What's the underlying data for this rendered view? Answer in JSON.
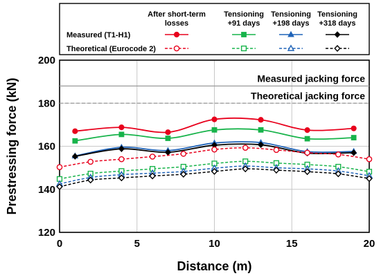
{
  "chart_data": {
    "type": "line",
    "xlabel": "Distance (m)",
    "ylabel": "Prestressing force (kN)",
    "xlim": [
      0,
      20
    ],
    "ylim": [
      120,
      200
    ],
    "xticks": [
      0,
      5,
      10,
      15,
      20
    ],
    "yticks": [
      120,
      140,
      160,
      180,
      200
    ],
    "grid": true,
    "legend_placement": "top",
    "legend": {
      "col_headers": [
        [
          "After short-term",
          "losses"
        ],
        [
          "Tensioning",
          "+91 days"
        ],
        [
          "Tensioning",
          "+198 days"
        ],
        [
          "Tensioning",
          "+318 days"
        ]
      ],
      "row_labels": [
        "Measured (T1-H1)",
        "Theoretical (Eurocode 2)"
      ]
    },
    "annotations": [
      {
        "text": "Measured jacking force",
        "y": 188,
        "color": "#999999",
        "dash": "solid"
      },
      {
        "text": "Theoretical jacking force",
        "y": 180,
        "color": "#999999",
        "dash": "dashed"
      }
    ],
    "series": [
      {
        "group": "measured",
        "stage": "After short-term losses",
        "color": "#e8001c",
        "marker": "circle-filled",
        "dash": "solid",
        "x": [
          1,
          4,
          7,
          10,
          13,
          16,
          19
        ],
        "y": [
          167,
          168.8,
          166.5,
          172.5,
          172.3,
          167.5,
          168.3
        ]
      },
      {
        "group": "measured",
        "stage": "Tensioning +91 days",
        "color": "#17b34a",
        "marker": "square-filled",
        "dash": "solid",
        "x": [
          1,
          4,
          7,
          10,
          13,
          16,
          19
        ],
        "y": [
          162.5,
          165.5,
          163.7,
          167.6,
          167.6,
          163.5,
          164
        ]
      },
      {
        "group": "measured",
        "stage": "Tensioning +198 days",
        "color": "#1f63b8",
        "marker": "triangle-filled",
        "dash": "solid",
        "x": [
          1,
          4,
          7,
          10,
          13,
          16,
          19
        ],
        "y": [
          155.5,
          159.5,
          158,
          161.5,
          161.7,
          157.5,
          157.6
        ]
      },
      {
        "group": "measured",
        "stage": "Tensioning +318 days",
        "color": "#000000",
        "marker": "diamond-filled",
        "dash": "solid",
        "x": [
          1,
          4,
          7,
          10,
          13,
          16,
          19
        ],
        "y": [
          155.3,
          158.8,
          157.2,
          160.5,
          160.7,
          156.8,
          157
        ]
      },
      {
        "group": "theoretical",
        "stage": "After short-term losses",
        "color": "#e8001c",
        "marker": "circle-open",
        "dash": "dashed",
        "x": [
          0,
          2,
          4,
          6,
          8,
          10,
          12,
          14,
          16,
          18,
          20
        ],
        "y": [
          150.3,
          152.8,
          154,
          155.2,
          156.5,
          158.5,
          159.3,
          158.3,
          157,
          156.2,
          154
        ]
      },
      {
        "group": "theoretical",
        "stage": "Tensioning +91 days",
        "color": "#17b34a",
        "marker": "square-open",
        "dash": "dashed",
        "x": [
          0,
          2,
          4,
          6,
          8,
          10,
          12,
          14,
          16,
          18,
          20
        ],
        "y": [
          144.8,
          147.3,
          148.5,
          149.5,
          150.5,
          152,
          153,
          152.2,
          151.5,
          150.5,
          148.2
        ]
      },
      {
        "group": "theoretical",
        "stage": "Tensioning +198 days",
        "color": "#1f63b8",
        "marker": "triangle-open",
        "dash": "dashed",
        "x": [
          0,
          2,
          4,
          6,
          8,
          10,
          12,
          14,
          16,
          18,
          20
        ],
        "y": [
          142.5,
          145.5,
          146.8,
          147.5,
          148.3,
          149.8,
          150.8,
          150,
          149.5,
          148.5,
          146.3
        ]
      },
      {
        "group": "theoretical",
        "stage": "Tensioning +318 days",
        "color": "#000000",
        "marker": "diamond-open",
        "dash": "dashed",
        "x": [
          0,
          2,
          4,
          6,
          8,
          10,
          12,
          14,
          16,
          18,
          20
        ],
        "y": [
          141.2,
          144.3,
          145.3,
          146.2,
          147,
          148.3,
          149.5,
          148.9,
          148.2,
          147.2,
          145
        ]
      }
    ]
  }
}
